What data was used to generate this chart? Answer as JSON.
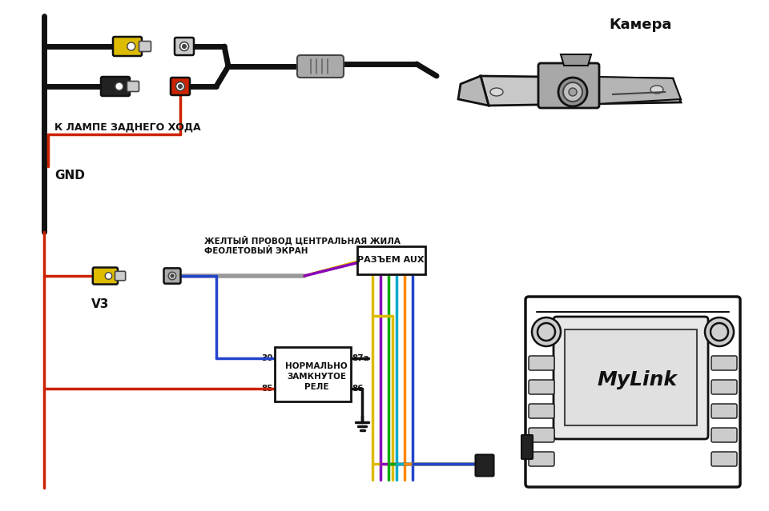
{
  "bg_color": "#ffffff",
  "text_camera": "Камера",
  "text_lamp": "К ЛАМПЕ ЗАДНЕГО ХОДА",
  "text_gnd": "GND",
  "text_yellow": "ЖЕЛТЫЙ ПРОВОД ЦЕНТРАЛЬНАЯ ЖИЛА",
  "text_violet": "ФЕОЛЕТОВЫЙ ЭКРАН",
  "text_aux": "РАЗЪЕМ AUX",
  "text_relay_1": "НОРМАЛЬНО",
  "text_relay_2": "ЗАМКНУТОЕ",
  "text_relay_3": "РЕЛЕ",
  "text_30": "30",
  "text_85": "85",
  "text_87a": "87а",
  "text_86": "86",
  "text_v3": "V3",
  "text_mylink": "MyLink",
  "c_black": "#111111",
  "c_red": "#cc2200",
  "c_yellow": "#ddbb00",
  "c_violet": "#8800bb",
  "c_green": "#00aa00",
  "c_blue": "#2244cc",
  "c_cyan": "#00aacc",
  "c_orange": "#ff8800",
  "c_gray": "#888888",
  "c_lgray": "#cccccc",
  "c_dgray": "#444444",
  "c_white": "#ffffff"
}
